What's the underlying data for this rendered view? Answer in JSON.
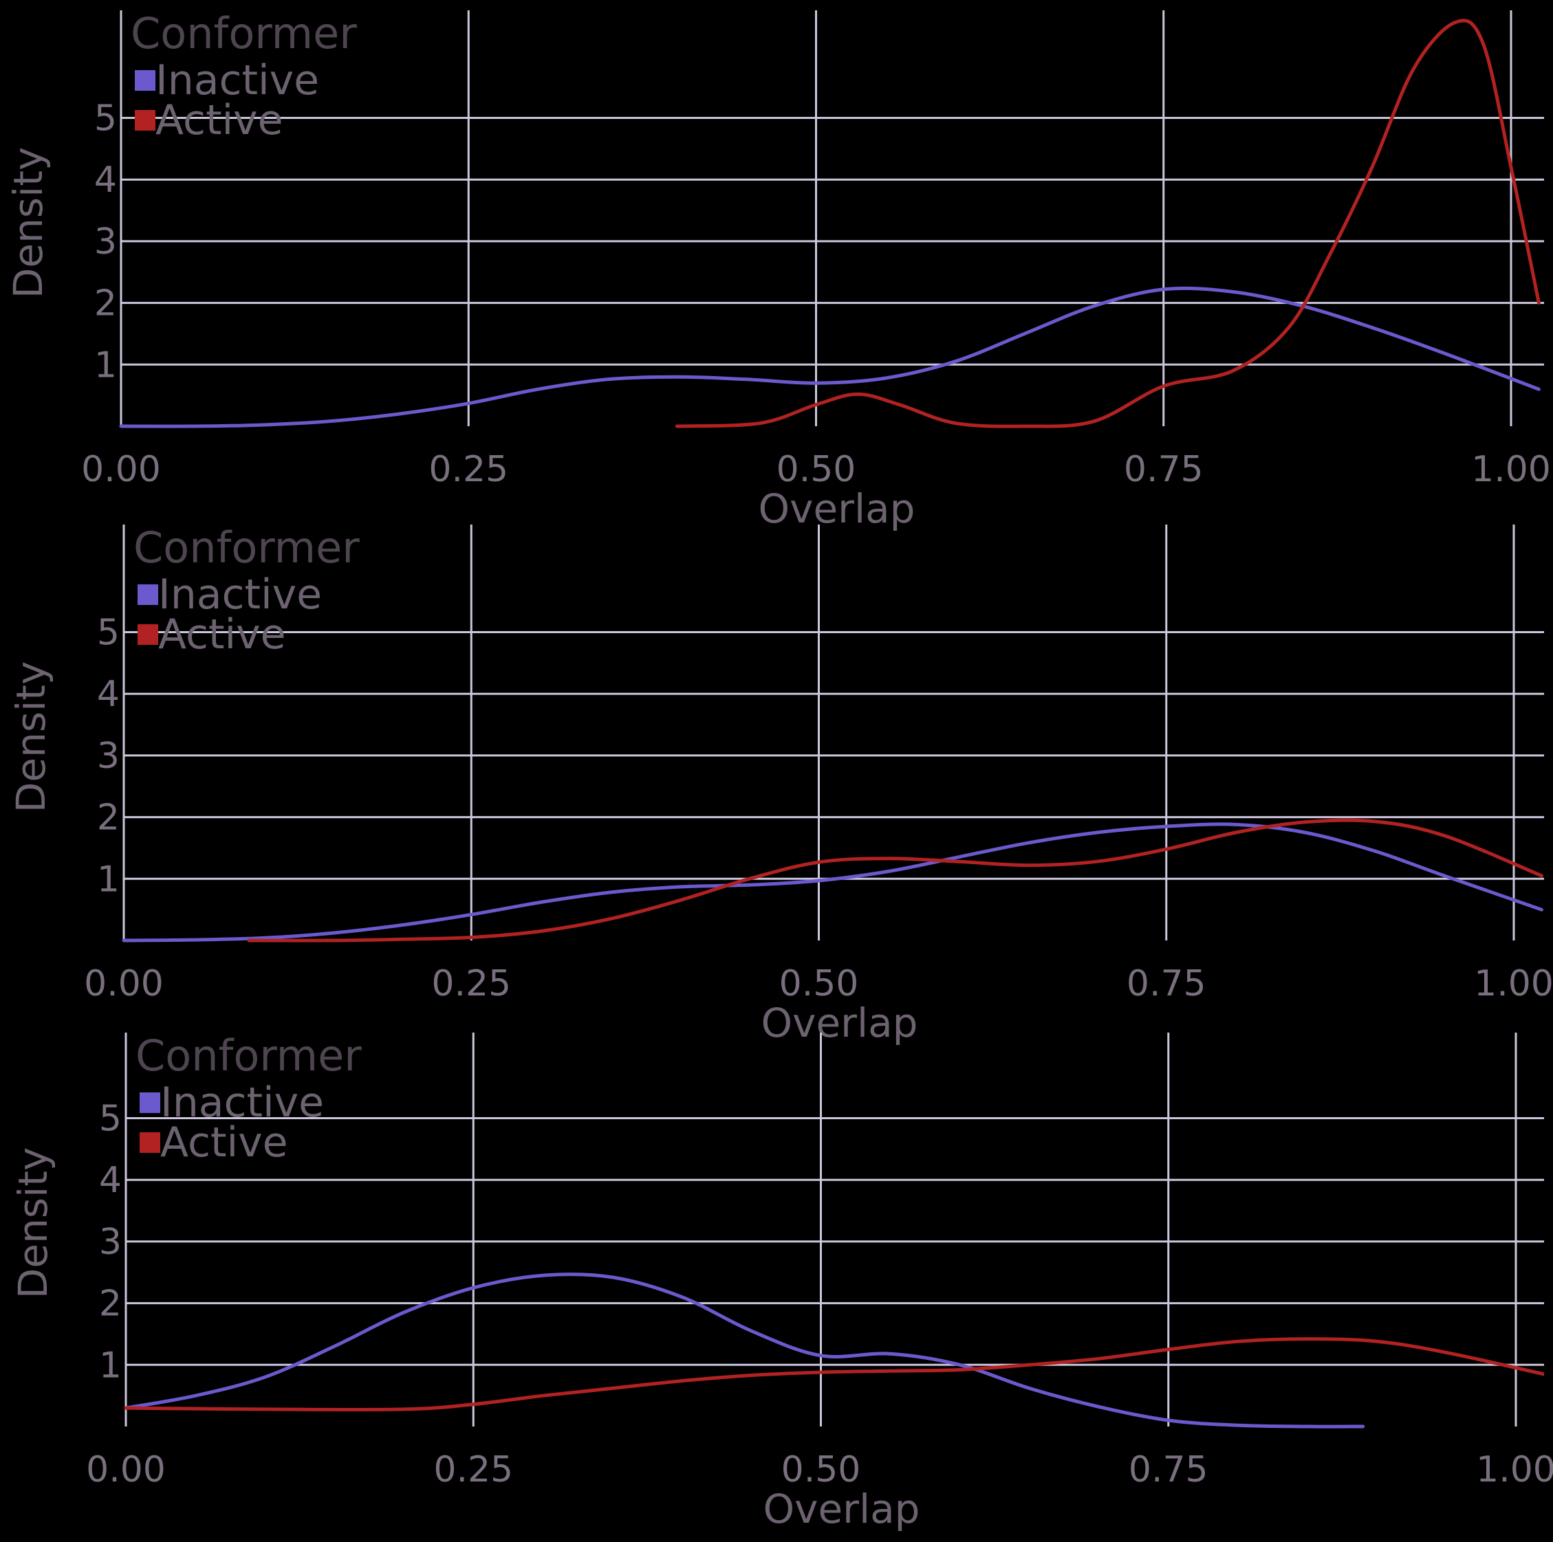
{
  "chart_data": [
    {
      "type": "line",
      "xlabel": "Overlap",
      "ylabel": "Density",
      "xlim": [
        0,
        1
      ],
      "ylim": [
        0,
        6.5
      ],
      "xticks": [
        "0.00",
        "0.25",
        "0.50",
        "0.75",
        "1.00"
      ],
      "yticks": [
        "1",
        "2",
        "3",
        "4",
        "5"
      ],
      "grid": true,
      "legend": {
        "title": "Conformer",
        "position": "top-left"
      },
      "series": [
        {
          "name": "Inactive",
          "color": "#6a5acd",
          "x": [
            0,
            0.05,
            0.1,
            0.15,
            0.2,
            0.25,
            0.3,
            0.35,
            0.4,
            0.45,
            0.5,
            0.55,
            0.6,
            0.65,
            0.7,
            0.75,
            0.8,
            0.85,
            0.9,
            0.95,
            1.02
          ],
          "y": [
            0,
            0.0,
            0.02,
            0.08,
            0.2,
            0.37,
            0.6,
            0.76,
            0.8,
            0.76,
            0.7,
            0.78,
            1.05,
            1.5,
            1.95,
            2.22,
            2.18,
            1.95,
            1.6,
            1.2,
            0.6
          ]
        },
        {
          "name": "Active",
          "color": "#b22222",
          "x": [
            0.4,
            0.46,
            0.5,
            0.53,
            0.56,
            0.6,
            0.65,
            0.7,
            0.75,
            0.8,
            0.84,
            0.87,
            0.9,
            0.93,
            0.96,
            0.98,
            1.0,
            1.02
          ],
          "y": [
            0,
            0.05,
            0.35,
            0.52,
            0.35,
            0.05,
            0.0,
            0.08,
            0.65,
            0.9,
            1.6,
            2.8,
            4.2,
            5.8,
            6.55,
            6.2,
            4.2,
            2.0
          ]
        }
      ]
    },
    {
      "type": "line",
      "xlabel": "Overlap",
      "ylabel": "Density",
      "xlim": [
        0,
        1
      ],
      "ylim": [
        0,
        6.5
      ],
      "xticks": [
        "0.00",
        "0.25",
        "0.50",
        "0.75",
        "1.00"
      ],
      "yticks": [
        "1",
        "2",
        "3",
        "4",
        "5"
      ],
      "grid": true,
      "legend": {
        "title": "Conformer",
        "position": "top-left"
      },
      "series": [
        {
          "name": "Inactive",
          "color": "#6a5acd",
          "x": [
            0,
            0.05,
            0.1,
            0.15,
            0.2,
            0.25,
            0.3,
            0.35,
            0.4,
            0.45,
            0.5,
            0.55,
            0.6,
            0.65,
            0.7,
            0.75,
            0.8,
            0.85,
            0.9,
            0.95,
            1.02
          ],
          "y": [
            0,
            0.01,
            0.04,
            0.12,
            0.25,
            0.42,
            0.62,
            0.78,
            0.87,
            0.9,
            0.97,
            1.12,
            1.35,
            1.58,
            1.75,
            1.85,
            1.88,
            1.75,
            1.45,
            1.05,
            0.5
          ]
        },
        {
          "name": "Active",
          "color": "#b22222",
          "x": [
            0.09,
            0.15,
            0.2,
            0.25,
            0.3,
            0.35,
            0.4,
            0.45,
            0.5,
            0.55,
            0.6,
            0.65,
            0.7,
            0.75,
            0.8,
            0.85,
            0.9,
            0.95,
            1.02
          ],
          "y": [
            0,
            0.0,
            0.02,
            0.05,
            0.15,
            0.35,
            0.65,
            1.0,
            1.27,
            1.33,
            1.28,
            1.22,
            1.28,
            1.48,
            1.75,
            1.92,
            1.93,
            1.7,
            1.05
          ]
        }
      ]
    },
    {
      "type": "line",
      "xlabel": "Overlap",
      "ylabel": "Density",
      "xlim": [
        0,
        1
      ],
      "ylim": [
        0,
        6.5
      ],
      "xticks": [
        "0.00",
        "0.25",
        "0.50",
        "0.75",
        "1.00"
      ],
      "yticks": [
        "1",
        "2",
        "3",
        "4",
        "5"
      ],
      "grid": true,
      "legend": {
        "title": "Conformer",
        "position": "top-left"
      },
      "series": [
        {
          "name": "Inactive",
          "color": "#6a5acd",
          "x": [
            0,
            0.05,
            0.1,
            0.15,
            0.2,
            0.25,
            0.3,
            0.35,
            0.4,
            0.45,
            0.5,
            0.55,
            0.6,
            0.65,
            0.7,
            0.75,
            0.8,
            0.85,
            0.89
          ],
          "y": [
            0.3,
            0.5,
            0.8,
            1.3,
            1.85,
            2.25,
            2.45,
            2.42,
            2.1,
            1.55,
            1.15,
            1.18,
            1.0,
            0.62,
            0.32,
            0.1,
            0.02,
            0.0,
            0.0
          ]
        },
        {
          "name": "Active",
          "color": "#b22222",
          "x": [
            0,
            0.1,
            0.2,
            0.25,
            0.3,
            0.35,
            0.4,
            0.45,
            0.5,
            0.55,
            0.6,
            0.65,
            0.7,
            0.75,
            0.8,
            0.85,
            0.9,
            0.95,
            1.02
          ],
          "y": [
            0.3,
            0.28,
            0.28,
            0.36,
            0.5,
            0.62,
            0.74,
            0.83,
            0.88,
            0.9,
            0.92,
            1.0,
            1.1,
            1.25,
            1.38,
            1.42,
            1.38,
            1.2,
            0.85
          ]
        }
      ]
    }
  ]
}
